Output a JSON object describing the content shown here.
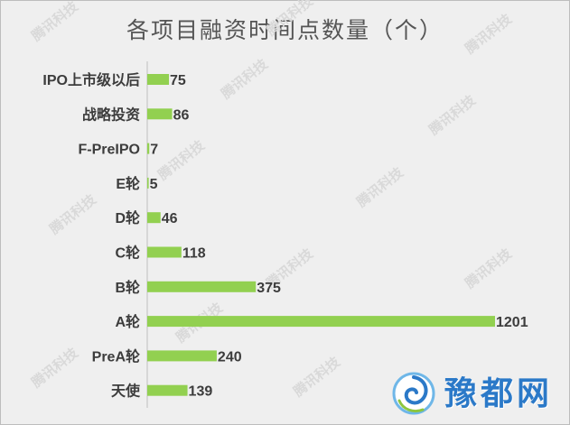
{
  "chart_data": {
    "type": "bar",
    "orientation": "horizontal",
    "title": "各项目融资时间点数量（个）",
    "categories": [
      "IPO上市级以后",
      "战略投资",
      "F-PreIPO",
      "E轮",
      "D轮",
      "C轮",
      "B轮",
      "A轮",
      "PreA轮",
      "天使"
    ],
    "values": [
      75,
      86,
      7,
      5,
      46,
      118,
      375,
      1201,
      240,
      139
    ],
    "xlim": [
      0,
      1201
    ],
    "bar_color": "#92d050",
    "grid": false,
    "legend": "none"
  },
  "watermark": "腾讯科技",
  "logo": {
    "text": "豫都网",
    "icon": "swirl-icon"
  }
}
